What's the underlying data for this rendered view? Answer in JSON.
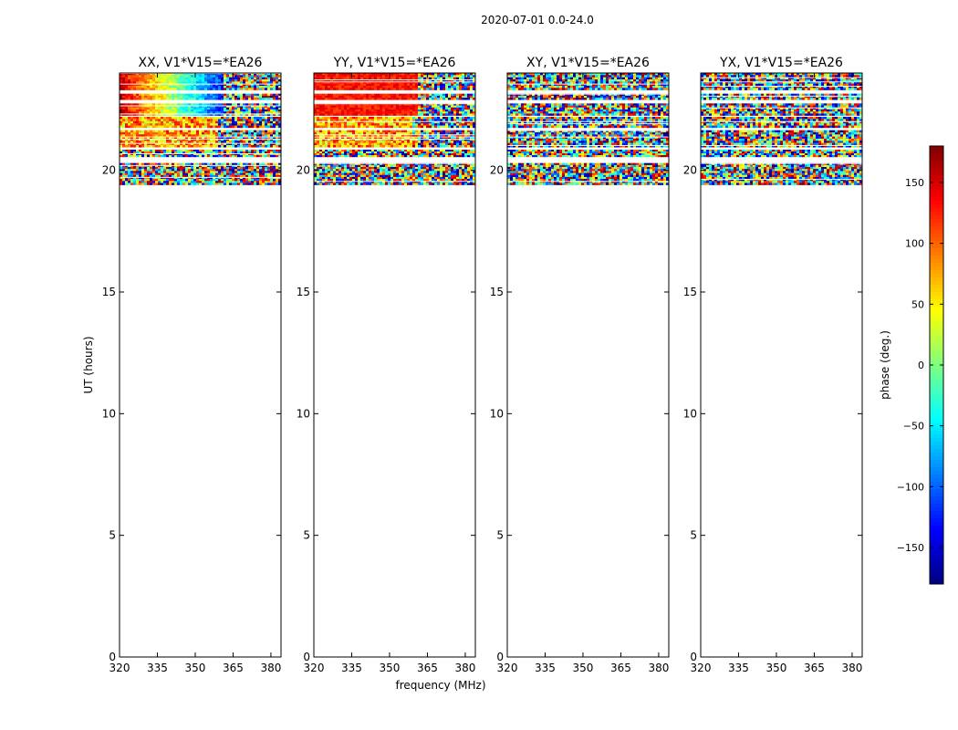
{
  "chart_data": {
    "type": "heatmap",
    "suptitle": "2020-07-01 0.0-24.0",
    "xlabel": "frequency (MHz)",
    "ylabel": "UT (hours)",
    "xlim": [
      320,
      384
    ],
    "ylim": [
      0,
      24
    ],
    "x_ticks": [
      320,
      335,
      350,
      365,
      380
    ],
    "y_ticks": [
      0,
      5,
      10,
      15,
      20
    ],
    "panels": [
      {
        "title": "XX, V1*V15=*EA26",
        "pol": "XX"
      },
      {
        "title": "YY, V1*V15=*EA26",
        "pol": "YY"
      },
      {
        "title": "XY, V1*V15=*EA26",
        "pol": "XY"
      },
      {
        "title": "YX, V1*V15=*EA26",
        "pol": "YX"
      }
    ],
    "data_time_range_hours": [
      19.4,
      24.0
    ],
    "data_bands": [
      {
        "t0": 23.3,
        "t1": 24.0
      },
      {
        "t0": 22.9,
        "t1": 23.15
      },
      {
        "t0": 22.25,
        "t1": 22.75
      },
      {
        "t0": 21.75,
        "t1": 22.2
      },
      {
        "t0": 20.95,
        "t1": 21.65
      },
      {
        "t0": 20.55,
        "t1": 20.85
      },
      {
        "t0": 19.4,
        "t1": 20.3
      }
    ],
    "colorbar": {
      "label": "phase (deg.)",
      "range": [
        -180,
        180
      ],
      "ticks": [
        150,
        100,
        50,
        0,
        -50,
        -100,
        -150
      ],
      "colormap": "jet"
    }
  }
}
